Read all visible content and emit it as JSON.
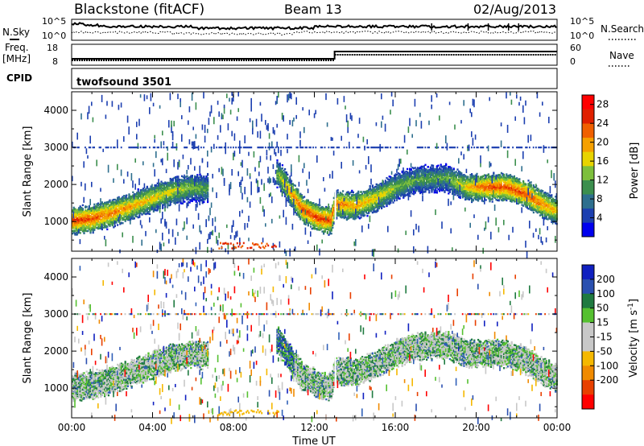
{
  "header": {
    "station": "Blackstone (fitACF)",
    "beam": "Beam 13",
    "date": "02/Aug/2013"
  },
  "noise_panel": {
    "left_label": "N.Sky",
    "right_label": "N.Search",
    "left_ticks": [
      "10^5",
      "10^0"
    ],
    "right_ticks": [
      "10^5",
      "10^0"
    ]
  },
  "freq_panel": {
    "left_label_1": "Freq.",
    "left_label_2": "[MHz]",
    "left_ticks": [
      "18",
      "8"
    ],
    "right_label": "Nave",
    "right_ticks": [
      "60",
      "0"
    ]
  },
  "cpid_panel": {
    "label": "CPID",
    "program": "twofsound 3501"
  },
  "colors": {
    "power_scale": [
      "#0000ee",
      "#1c3fb0",
      "#2e6f8e",
      "#3c8f4e",
      "#7dbf3c",
      "#e8d400",
      "#f5a000",
      "#f06000",
      "#e02000",
      "#ff0000"
    ],
    "velocity_scale": [
      "#1020c0",
      "#2a50b0",
      "#1f7a40",
      "#55c030",
      "#c8c8c8",
      "#c8c8c8",
      "#f5b800",
      "#f08a00",
      "#e84000",
      "#ff0000"
    ]
  },
  "chart_data": [
    {
      "type": "heatmap",
      "name": "power",
      "ylabel": "Slant Range [km]",
      "xlim": [
        "00:00",
        "24:00"
      ],
      "ylim": [
        200,
        4500
      ],
      "y_ticks": [
        1000,
        2000,
        3000,
        4000
      ],
      "x_ticks": [
        "00:00",
        "04:00",
        "08:00",
        "12:00",
        "16:00",
        "20:00",
        "00:00"
      ],
      "colorbar_label": "Power [dB]",
      "colorbar_ticks": [
        4,
        8,
        12,
        16,
        20,
        24,
        28
      ],
      "colorbar_range": [
        0,
        30
      ],
      "echo_band": [
        {
          "t": 0.0,
          "range_km": 1050,
          "power_db": 27
        },
        {
          "t": 1.0,
          "range_km": 1100,
          "power_db": 26
        },
        {
          "t": 2.0,
          "range_km": 1250,
          "power_db": 24
        },
        {
          "t": 3.0,
          "range_km": 1450,
          "power_db": 22
        },
        {
          "t": 4.0,
          "range_km": 1650,
          "power_db": 20
        },
        {
          "t": 5.0,
          "range_km": 1850,
          "power_db": 18
        },
        {
          "t": 6.0,
          "range_km": 1950,
          "power_db": 16
        },
        {
          "t": 6.5,
          "range_km": 1900,
          "power_db": 14
        },
        {
          "t": 10.2,
          "range_km": 2300,
          "power_db": 16
        },
        {
          "t": 10.8,
          "range_km": 1800,
          "power_db": 22
        },
        {
          "t": 11.4,
          "range_km": 1350,
          "power_db": 26
        },
        {
          "t": 12.2,
          "range_km": 1100,
          "power_db": 27
        },
        {
          "t": 12.8,
          "range_km": 1050,
          "power_db": 26
        },
        {
          "t": 13.0,
          "range_km": 1500,
          "power_db": 24
        },
        {
          "t": 14.0,
          "range_km": 1450,
          "power_db": 22
        },
        {
          "t": 15.0,
          "range_km": 1650,
          "power_db": 20
        },
        {
          "t": 16.0,
          "range_km": 1950,
          "power_db": 16
        },
        {
          "t": 17.0,
          "range_km": 2150,
          "power_db": 14
        },
        {
          "t": 18.5,
          "range_km": 2200,
          "power_db": 14
        },
        {
          "t": 19.5,
          "range_km": 1950,
          "power_db": 20
        },
        {
          "t": 20.5,
          "range_km": 1950,
          "power_db": 26
        },
        {
          "t": 21.5,
          "range_km": 1950,
          "power_db": 26
        },
        {
          "t": 22.5,
          "range_km": 1750,
          "power_db": 26
        },
        {
          "t": 23.2,
          "range_km": 1500,
          "power_db": 24
        },
        {
          "t": 24.0,
          "range_km": 1300,
          "power_db": 20
        }
      ]
    },
    {
      "type": "heatmap",
      "name": "velocity",
      "ylabel": "Slant Range [km]",
      "xlabel": "Time UT",
      "xlim": [
        "00:00",
        "24:00"
      ],
      "ylim": [
        200,
        4500
      ],
      "y_ticks": [
        1000,
        2000,
        3000,
        4000
      ],
      "x_ticks": [
        "00:00",
        "04:00",
        "08:00",
        "12:00",
        "16:00",
        "20:00",
        "00:00"
      ],
      "colorbar_label": "Velocity [m s-1]",
      "colorbar_label_main": "Velocity [m s",
      "colorbar_label_sup": "-1",
      "colorbar_label_end": "]",
      "colorbar_ticks": [
        200,
        100,
        50,
        15,
        -15,
        -50,
        -100,
        -200
      ],
      "colorbar_range": [
        -250,
        250
      ]
    }
  ]
}
